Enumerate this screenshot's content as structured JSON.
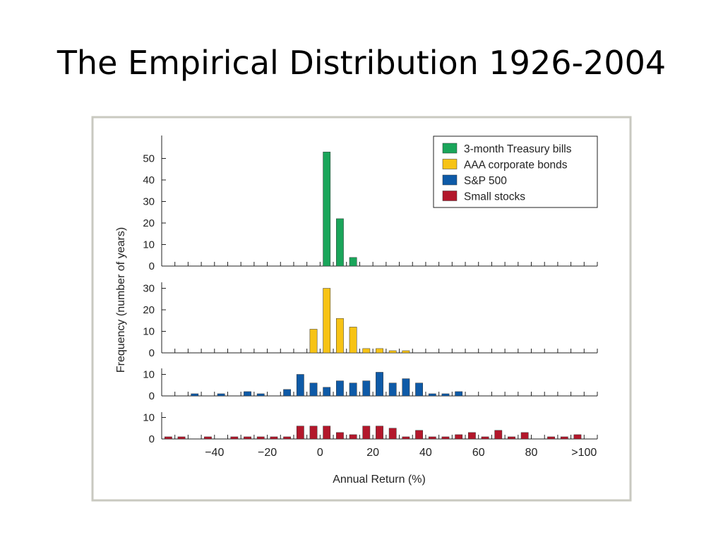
{
  "slide": {
    "title": "The Empirical Distribution 1926-2004"
  },
  "colors": {
    "tbills": "#1aa55a",
    "bonds": "#f7c315",
    "sp500": "#0e5aa7",
    "small": "#b3172b",
    "frame": "#c9c9c0",
    "axis": "#222222"
  },
  "chart_data": {
    "type": "bar",
    "xlabel": "Annual Return (%)",
    "ylabel": "Frequency (number of years)",
    "xlim": [
      -60,
      105
    ],
    "bin_width": 5,
    "x_ticks": [
      {
        "value": -40,
        "label": "−40"
      },
      {
        "value": -20,
        "label": "−20"
      },
      {
        "value": 0,
        "label": "0"
      },
      {
        "value": 20,
        "label": "20"
      },
      {
        "value": 40,
        "label": "40"
      },
      {
        "value": 60,
        "label": "60"
      },
      {
        "value": 80,
        "label": "80"
      },
      {
        "value": 100,
        "label": ">100"
      }
    ],
    "legend_position": "top-right",
    "grid": false,
    "series": [
      {
        "name": "3-month Treasury bills",
        "color_key": "tbills",
        "ylim": [
          0,
          60
        ],
        "y_ticks": [
          0,
          10,
          20,
          30,
          40,
          50
        ],
        "bins": [
          {
            "x": 2.5,
            "count": 53
          },
          {
            "x": 7.5,
            "count": 22
          },
          {
            "x": 12.5,
            "count": 4
          }
        ]
      },
      {
        "name": "AAA corporate bonds",
        "color_key": "bonds",
        "ylim": [
          0,
          30
        ],
        "y_ticks": [
          0,
          10,
          20,
          30
        ],
        "bins": [
          {
            "x": -2.5,
            "count": 11
          },
          {
            "x": 2.5,
            "count": 30
          },
          {
            "x": 7.5,
            "count": 16
          },
          {
            "x": 12.5,
            "count": 12
          },
          {
            "x": 17.5,
            "count": 2
          },
          {
            "x": 22.5,
            "count": 2
          },
          {
            "x": 27.5,
            "count": 1
          },
          {
            "x": 32.5,
            "count": 1
          }
        ]
      },
      {
        "name": "S&P 500",
        "color_key": "sp500",
        "ylim": [
          0,
          12
        ],
        "y_ticks": [
          0,
          10
        ],
        "bins": [
          {
            "x": -47.5,
            "count": 1
          },
          {
            "x": -37.5,
            "count": 1
          },
          {
            "x": -27.5,
            "count": 2
          },
          {
            "x": -22.5,
            "count": 1
          },
          {
            "x": -12.5,
            "count": 3
          },
          {
            "x": -7.5,
            "count": 10
          },
          {
            "x": -2.5,
            "count": 6
          },
          {
            "x": 2.5,
            "count": 4
          },
          {
            "x": 7.5,
            "count": 7
          },
          {
            "x": 12.5,
            "count": 6
          },
          {
            "x": 17.5,
            "count": 7
          },
          {
            "x": 22.5,
            "count": 11
          },
          {
            "x": 27.5,
            "count": 6
          },
          {
            "x": 32.5,
            "count": 8
          },
          {
            "x": 37.5,
            "count": 6
          },
          {
            "x": 42.5,
            "count": 1
          },
          {
            "x": 47.5,
            "count": 1
          },
          {
            "x": 52.5,
            "count": 2
          }
        ]
      },
      {
        "name": "Small stocks",
        "color_key": "small",
        "ylim": [
          0,
          12
        ],
        "y_ticks": [
          0,
          10
        ],
        "bins": [
          {
            "x": -57.5,
            "count": 1
          },
          {
            "x": -52.5,
            "count": 1
          },
          {
            "x": -42.5,
            "count": 1
          },
          {
            "x": -32.5,
            "count": 1
          },
          {
            "x": -27.5,
            "count": 1
          },
          {
            "x": -22.5,
            "count": 1
          },
          {
            "x": -17.5,
            "count": 1
          },
          {
            "x": -12.5,
            "count": 1
          },
          {
            "x": -7.5,
            "count": 6
          },
          {
            "x": -2.5,
            "count": 6
          },
          {
            "x": 2.5,
            "count": 6
          },
          {
            "x": 7.5,
            "count": 3
          },
          {
            "x": 12.5,
            "count": 2
          },
          {
            "x": 17.5,
            "count": 6
          },
          {
            "x": 22.5,
            "count": 6
          },
          {
            "x": 27.5,
            "count": 5
          },
          {
            "x": 32.5,
            "count": 1
          },
          {
            "x": 37.5,
            "count": 4
          },
          {
            "x": 42.5,
            "count": 1
          },
          {
            "x": 47.5,
            "count": 1
          },
          {
            "x": 52.5,
            "count": 2
          },
          {
            "x": 57.5,
            "count": 3
          },
          {
            "x": 62.5,
            "count": 1
          },
          {
            "x": 67.5,
            "count": 4
          },
          {
            "x": 72.5,
            "count": 1
          },
          {
            "x": 77.5,
            "count": 3
          },
          {
            "x": 87.5,
            "count": 1
          },
          {
            "x": 92.5,
            "count": 1
          },
          {
            "x": 97.5,
            "count": 2
          }
        ]
      }
    ]
  }
}
